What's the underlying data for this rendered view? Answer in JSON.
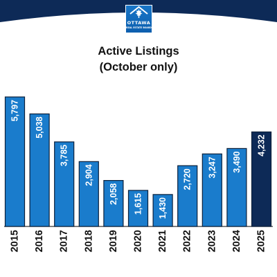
{
  "header": {
    "logo_line1": "OTTAWA",
    "logo_line2": "REAL ESTATE BOARD"
  },
  "colors": {
    "header_navy": "#0d2a57",
    "bar_blue": "#1a7ccc",
    "bar_current": "#0d2a57"
  },
  "chart_data": {
    "type": "bar",
    "title": "Active Listings",
    "subtitle": "(October only)",
    "categories": [
      "2015",
      "2016",
      "2017",
      "2018",
      "2019",
      "2020",
      "2021",
      "2022",
      "2023",
      "2024",
      "2025"
    ],
    "values": [
      5797,
      5038,
      3785,
      2904,
      2058,
      1615,
      1430,
      2720,
      3247,
      3490,
      4232
    ],
    "value_labels": [
      "5,797",
      "5,038",
      "3,785",
      "2,904",
      "2,058",
      "1,615",
      "1,430",
      "2,720",
      "3,247",
      "3,490",
      "4,232"
    ],
    "highlight_category": "2025",
    "xlabel": "",
    "ylabel": "",
    "ylim": [
      0,
      6700
    ],
    "grid": false,
    "legend": "none"
  }
}
